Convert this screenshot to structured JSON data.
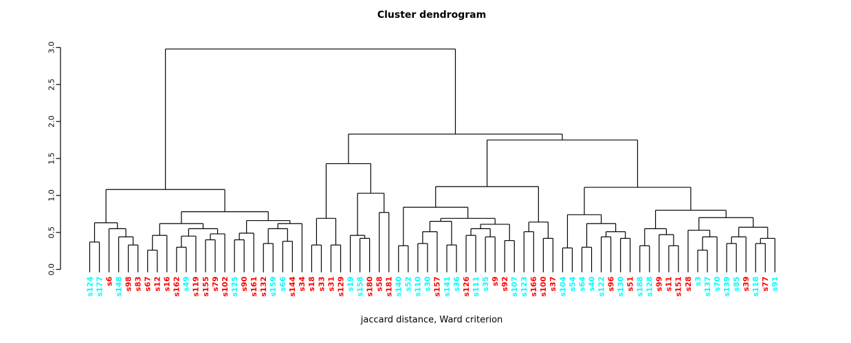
{
  "title": "Cluster dendrogram",
  "xlabel": "jaccard distance, Ward criterion",
  "chart_data": {
    "type": "dendrogram",
    "title": "Cluster dendrogram",
    "xlabel": "jaccard distance, Ward criterion",
    "ylabel": "",
    "ylim": [
      0,
      3
    ],
    "y_ticks": [
      0,
      0.5,
      1,
      1.5,
      2,
      2.5,
      3
    ],
    "y_tick_labels": [
      "0.0",
      "0.5",
      "1.0",
      "1.5",
      "2.0",
      "2.5",
      "3.0"
    ],
    "grid": false,
    "line_color": "#000000",
    "cluster_colors": {
      "cyan": "#00FFFF",
      "red": "#FF0000"
    },
    "leaves": [
      {
        "label": "s124",
        "cluster": "cyan"
      },
      {
        "label": "s177",
        "cluster": "cyan"
      },
      {
        "label": "s6",
        "cluster": "red"
      },
      {
        "label": "s148",
        "cluster": "cyan"
      },
      {
        "label": "s98",
        "cluster": "red"
      },
      {
        "label": "s83",
        "cluster": "red"
      },
      {
        "label": "s67",
        "cluster": "red"
      },
      {
        "label": "s12",
        "cluster": "red"
      },
      {
        "label": "s16",
        "cluster": "red"
      },
      {
        "label": "s162",
        "cluster": "red"
      },
      {
        "label": "s49",
        "cluster": "cyan"
      },
      {
        "label": "s119",
        "cluster": "red"
      },
      {
        "label": "s155",
        "cluster": "red"
      },
      {
        "label": "s79",
        "cluster": "red"
      },
      {
        "label": "s102",
        "cluster": "red"
      },
      {
        "label": "s125",
        "cluster": "cyan"
      },
      {
        "label": "s90",
        "cluster": "red"
      },
      {
        "label": "s161",
        "cluster": "red"
      },
      {
        "label": "s132",
        "cluster": "red"
      },
      {
        "label": "s159",
        "cluster": "cyan"
      },
      {
        "label": "s66",
        "cluster": "cyan"
      },
      {
        "label": "s144",
        "cluster": "red"
      },
      {
        "label": "s34",
        "cluster": "red"
      },
      {
        "label": "s18",
        "cluster": "red"
      },
      {
        "label": "s33",
        "cluster": "red"
      },
      {
        "label": "s31",
        "cluster": "red"
      },
      {
        "label": "s129",
        "cluster": "red"
      },
      {
        "label": "s19",
        "cluster": "cyan"
      },
      {
        "label": "s158",
        "cluster": "cyan"
      },
      {
        "label": "s180",
        "cluster": "red"
      },
      {
        "label": "s58",
        "cluster": "red"
      },
      {
        "label": "s181",
        "cluster": "red"
      },
      {
        "label": "s140",
        "cluster": "cyan"
      },
      {
        "label": "s52",
        "cluster": "cyan"
      },
      {
        "label": "s110",
        "cluster": "cyan"
      },
      {
        "label": "s30",
        "cluster": "cyan"
      },
      {
        "label": "s157",
        "cluster": "red"
      },
      {
        "label": "s141",
        "cluster": "cyan"
      },
      {
        "label": "s36",
        "cluster": "cyan"
      },
      {
        "label": "s126",
        "cluster": "red"
      },
      {
        "label": "s111",
        "cluster": "cyan"
      },
      {
        "label": "s35",
        "cluster": "cyan"
      },
      {
        "label": "s9",
        "cluster": "red"
      },
      {
        "label": "s92",
        "cluster": "red"
      },
      {
        "label": "s107",
        "cluster": "cyan"
      },
      {
        "label": "s123",
        "cluster": "cyan"
      },
      {
        "label": "s166",
        "cluster": "red"
      },
      {
        "label": "s100",
        "cluster": "red"
      },
      {
        "label": "s37",
        "cluster": "red"
      },
      {
        "label": "s104",
        "cluster": "cyan"
      },
      {
        "label": "s54",
        "cluster": "cyan"
      },
      {
        "label": "s64",
        "cluster": "cyan"
      },
      {
        "label": "s40",
        "cluster": "cyan"
      },
      {
        "label": "s122",
        "cluster": "cyan"
      },
      {
        "label": "s96",
        "cluster": "red"
      },
      {
        "label": "s130",
        "cluster": "cyan"
      },
      {
        "label": "s51",
        "cluster": "red"
      },
      {
        "label": "s188",
        "cluster": "cyan"
      },
      {
        "label": "s128",
        "cluster": "cyan"
      },
      {
        "label": "s99",
        "cluster": "red"
      },
      {
        "label": "s11",
        "cluster": "red"
      },
      {
        "label": "s151",
        "cluster": "red"
      },
      {
        "label": "s28",
        "cluster": "red"
      },
      {
        "label": "s3",
        "cluster": "cyan"
      },
      {
        "label": "s137",
        "cluster": "cyan"
      },
      {
        "label": "s70",
        "cluster": "cyan"
      },
      {
        "label": "s139",
        "cluster": "cyan"
      },
      {
        "label": "s85",
        "cluster": "cyan"
      },
      {
        "label": "s39",
        "cluster": "red"
      },
      {
        "label": "s118",
        "cluster": "cyan"
      },
      {
        "label": "s77",
        "cluster": "red"
      },
      {
        "label": "s91",
        "cluster": "cyan"
      }
    ],
    "tree": [
      2.98,
      [
        1.08,
        [
          0.63,
          [
            0.37,
            0,
            1
          ],
          [
            0.55,
            2,
            [
              0.44,
              3,
              [
                0.33,
                4,
                5
              ]
            ]
          ]
        ],
        [
          0.78,
          [
            0.62,
            [
              0.46,
              [
                0.26,
                6,
                7
              ],
              8
            ],
            [
              0.55,
              [
                0.45,
                [
                  0.3,
                  9,
                  10
                ],
                11
              ],
              [
                0.48,
                [
                  0.4,
                  12,
                  13
                ],
                14
              ]
            ]
          ],
          [
            0.66,
            [
              0.49,
              [
                0.4,
                15,
                16
              ],
              17
            ],
            [
              0.62,
              [
                0.55,
                [
                  0.35,
                  18,
                  19
                ],
                [
                  0.38,
                  20,
                  21
                ]
              ],
              22
            ]
          ]
        ]
      ],
      [
        1.83,
        [
          1.43,
          [
            0.69,
            [
              0.33,
              23,
              24
            ],
            [
              0.33,
              25,
              26
            ]
          ],
          [
            1.03,
            [
              0.46,
              27,
              [
                0.42,
                28,
                29
              ]
            ],
            [
              0.77,
              30,
              31
            ]
          ]
        ],
        [
          1.75,
          [
            1.12,
            [
              0.84,
              [
                0.32,
                32,
                33
              ],
              [
                0.69,
                [
                  0.65,
                  [
                    0.51,
                    [
                      0.35,
                      34,
                      35
                    ],
                    36
                  ],
                  [
                    0.33,
                    37,
                    38
                  ]
                ],
                [
                  0.61,
                  [
                    0.55,
                    [
                      0.46,
                      39,
                      40
                    ],
                    [
                      0.44,
                      41,
                      42
                    ]
                  ],
                  [
                    0.39,
                    43,
                    44
                  ]
                ]
              ]
            ],
            [
              0.64,
              [
                0.51,
                45,
                46
              ],
              [
                0.42,
                47,
                48
              ]
            ]
          ],
          [
            1.11,
            [
              0.74,
              [
                0.29,
                49,
                50
              ],
              [
                0.62,
                [
                  0.3,
                  51,
                  52
                ],
                [
                  0.51,
                  [
                    0.44,
                    53,
                    54
                  ],
                  [
                    0.42,
                    55,
                    56
                  ]
                ]
              ]
            ],
            [
              0.8,
              [
                0.55,
                [
                  0.32,
                  57,
                  58
                ],
                [
                  0.47,
                  59,
                  [
                    0.32,
                    60,
                    61
                  ]
                ]
              ],
              [
                0.7,
                [
                  0.53,
                  62,
                  [
                    0.44,
                    [
                      0.26,
                      63,
                      64
                    ],
                    65
                  ]
                ],
                [
                  0.57,
                  [
                    0.44,
                    [
                      0.35,
                      66,
                      67
                    ],
                    68
                  ],
                  [
                    0.42,
                    [
                      0.35,
                      69,
                      70
                    ],
                    71
                  ]
                ]
              ]
            ]
          ]
        ]
      ]
    ]
  }
}
